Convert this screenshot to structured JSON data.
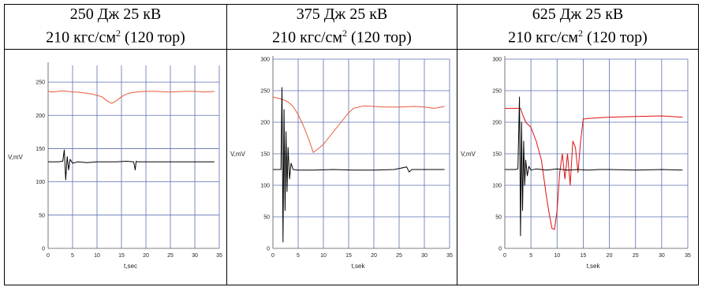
{
  "panels": [
    {
      "line1": "250 Дж 25 кВ",
      "line2_pre": "210 кгс/см",
      "line2_sup": "2",
      "line2_post": " (120 тор)"
    },
    {
      "line1": "375 Дж 25 кВ",
      "line2_pre": "210 кгс/см",
      "line2_sup": "2",
      "line2_post": " (120 тор)"
    },
    {
      "line1": "625 Дж 25 кВ",
      "line2_pre": "210 кгс/см",
      "line2_sup": "2",
      "line2_post": " (120 тор)"
    }
  ],
  "colors": {
    "red": "#e8593a",
    "red2": "#e01010",
    "black": "#000000",
    "grid": "#5b6fb0"
  },
  "chart_data": [
    {
      "type": "line",
      "xlabel": "t,sec",
      "ylabel": "V,mV",
      "xlim": [
        0,
        35
      ],
      "ylim": [
        0,
        275
      ],
      "xticks": [
        0,
        5,
        10,
        15,
        20,
        25,
        30,
        35
      ],
      "yticks": [
        0,
        50,
        100,
        150,
        200,
        250
      ],
      "series": [
        {
          "color": "red",
          "x": [
            0,
            1,
            2,
            3,
            4,
            5,
            6,
            7,
            8,
            9,
            10,
            11,
            12,
            13,
            14,
            15,
            16,
            17,
            18,
            20,
            22,
            25,
            28,
            30,
            32,
            34
          ],
          "y": [
            236,
            235,
            236,
            237,
            236,
            235,
            235,
            234,
            233,
            232,
            230,
            228,
            222,
            218,
            222,
            228,
            232,
            234,
            235,
            236,
            236,
            235,
            236,
            236,
            235,
            236
          ]
        },
        {
          "color": "black",
          "x": [
            0,
            2,
            3,
            3.3,
            3.6,
            3.9,
            4.2,
            4.5,
            5,
            6,
            8,
            10,
            12,
            14,
            16,
            17.5,
            17.8,
            18,
            18.3,
            20,
            25,
            30,
            34
          ],
          "y": [
            130,
            130,
            131,
            148,
            103,
            138,
            118,
            134,
            128,
            130,
            129,
            130,
            130,
            130,
            131,
            130,
            118,
            131,
            130,
            130,
            130,
            130,
            130
          ]
        }
      ]
    },
    {
      "type": "line",
      "xlabel": "t,sek",
      "ylabel": "V,mV",
      "xlim": [
        0,
        35
      ],
      "ylim": [
        0,
        300
      ],
      "xticks": [
        0,
        5,
        10,
        15,
        20,
        25,
        30,
        35
      ],
      "yticks": [
        0,
        50,
        100,
        150,
        200,
        250,
        300
      ],
      "series": [
        {
          "color": "red",
          "x": [
            0,
            1,
            2,
            3,
            4,
            5,
            6,
            7,
            8,
            9,
            10,
            11,
            12,
            13,
            14,
            15,
            16,
            18,
            20,
            22,
            25,
            28,
            30,
            32,
            34
          ],
          "y": [
            240,
            238,
            236,
            232,
            225,
            212,
            195,
            175,
            152,
            158,
            165,
            175,
            185,
            195,
            205,
            215,
            222,
            226,
            225,
            224,
            224,
            225,
            224,
            222,
            225
          ]
        },
        {
          "color": "black",
          "x": [
            0,
            1,
            1.6,
            1.8,
            2.0,
            2.2,
            2.4,
            2.6,
            2.8,
            3.0,
            3.3,
            3.6,
            4,
            5,
            8,
            12,
            16,
            20,
            24,
            26.5,
            27,
            27.5,
            30,
            34
          ],
          "y": [
            125,
            125,
            125,
            255,
            10,
            220,
            60,
            185,
            90,
            160,
            110,
            135,
            125,
            124,
            124,
            125,
            124,
            124,
            125,
            129,
            121,
            125,
            125,
            125
          ]
        }
      ]
    },
    {
      "type": "line",
      "xlabel": "t,sek",
      "ylabel": "V,mV",
      "xlim": [
        0,
        35
      ],
      "ylim": [
        0,
        300
      ],
      "xticks": [
        0,
        5,
        10,
        15,
        20,
        25,
        30,
        35
      ],
      "yticks": [
        0,
        50,
        100,
        150,
        200,
        250,
        300
      ],
      "series": [
        {
          "color": "red2",
          "x": [
            0,
            1,
            2,
            3,
            3.5,
            4,
            5,
            6,
            7,
            7.5,
            8,
            8.5,
            9,
            9.5,
            10,
            10.5,
            11,
            11.5,
            12,
            12.5,
            13,
            13.5,
            14,
            14.5,
            15,
            16,
            18,
            20,
            25,
            30,
            34
          ],
          "y": [
            222,
            222,
            222,
            222,
            210,
            200,
            192,
            170,
            140,
            110,
            80,
            55,
            32,
            30,
            60,
            120,
            150,
            110,
            150,
            100,
            170,
            160,
            120,
            170,
            205,
            206,
            207,
            208,
            209,
            210,
            208
          ]
        },
        {
          "color": "black",
          "x": [
            0,
            1,
            2,
            2.5,
            2.8,
            3.0,
            3.2,
            3.4,
            3.6,
            3.8,
            4.0,
            4.3,
            4.6,
            5,
            6,
            8,
            10,
            12,
            14,
            16,
            18,
            20,
            25,
            30,
            34
          ],
          "y": [
            125,
            125,
            125,
            126,
            240,
            20,
            200,
            60,
            170,
            100,
            140,
            115,
            130,
            124,
            126,
            124,
            126,
            124,
            125,
            124,
            125,
            125,
            124,
            125,
            124
          ]
        }
      ]
    }
  ]
}
